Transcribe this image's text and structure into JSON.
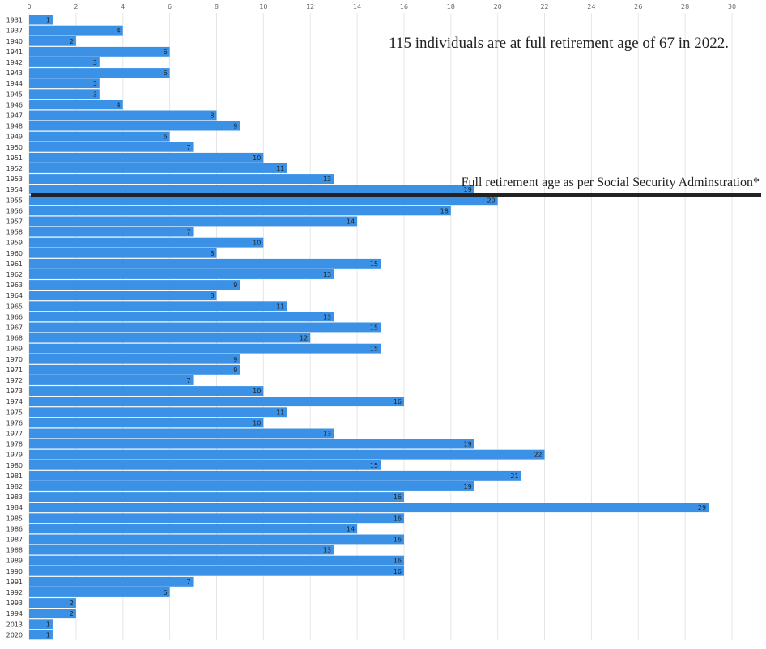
{
  "chart_data": {
    "type": "bar",
    "orientation": "horizontal",
    "categories": [
      "1931",
      "1937",
      "1940",
      "1941",
      "1942",
      "1943",
      "1944",
      "1945",
      "1946",
      "1947",
      "1948",
      "1949",
      "1950",
      "1951",
      "1952",
      "1953",
      "1954",
      "1955",
      "1956",
      "1957",
      "1958",
      "1959",
      "1960",
      "1961",
      "1962",
      "1963",
      "1964",
      "1965",
      "1966",
      "1967",
      "1968",
      "1969",
      "1970",
      "1971",
      "1972",
      "1973",
      "1974",
      "1975",
      "1976",
      "1977",
      "1978",
      "1979",
      "1980",
      "1981",
      "1982",
      "1983",
      "1984",
      "1985",
      "1986",
      "1987",
      "1988",
      "1989",
      "1990",
      "1991",
      "1992",
      "1993",
      "1994",
      "2013",
      "2020"
    ],
    "values": [
      1,
      4,
      2,
      6,
      3,
      6,
      3,
      3,
      4,
      8,
      9,
      6,
      7,
      10,
      11,
      13,
      19,
      20,
      18,
      14,
      7,
      10,
      8,
      15,
      13,
      9,
      8,
      11,
      13,
      15,
      12,
      15,
      9,
      9,
      7,
      10,
      16,
      11,
      10,
      13,
      19,
      22,
      15,
      21,
      19,
      16,
      29,
      16,
      14,
      16,
      13,
      16,
      16,
      7,
      6,
      2,
      2,
      1,
      1
    ],
    "xlim": [
      0,
      30
    ],
    "xticks": [
      "0",
      "2",
      "4",
      "6",
      "8",
      "10",
      "12",
      "14",
      "16",
      "18",
      "20",
      "22",
      "24",
      "26",
      "28",
      "30"
    ],
    "grid": true,
    "bar_color": "#3a91e6",
    "annotations": {
      "summary": "115 individuals are at full retirement age of  67 in 2022.",
      "threshold_label": "Full retirement age as per Social Security Adminstration*",
      "threshold_between": [
        "1954",
        "1955"
      ]
    }
  }
}
